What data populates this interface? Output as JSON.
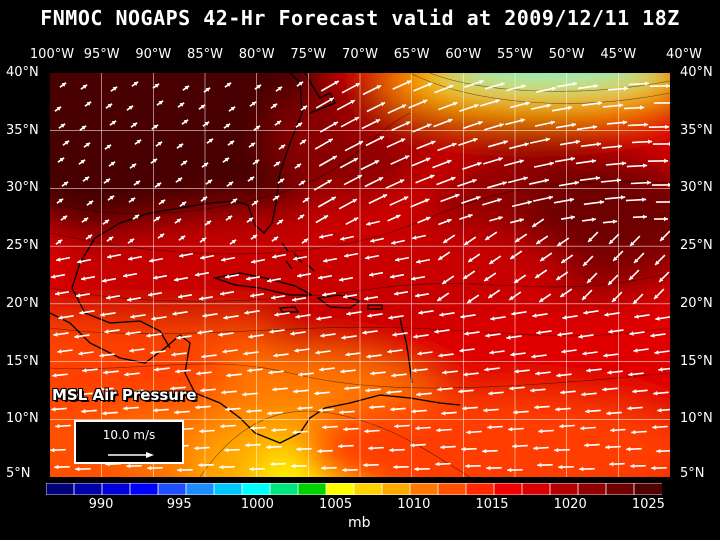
{
  "title": "FNMOC NOGAPS 42-Hr Forecast valid at 2009/12/11 18Z",
  "lon_labels": [
    "100°W",
    "95°W",
    "90°W",
    "85°W",
    "80°W",
    "75°W",
    "70°W",
    "65°W",
    "60°W",
    "55°W",
    "50°W",
    "45°W",
    "40°W"
  ],
  "lat_labels": [
    "40°N",
    "35°N",
    "30°N",
    "25°N",
    "20°N",
    "15°N",
    "10°N",
    "5°N"
  ],
  "field_label": "MSL Air Pressure",
  "vector_legend": {
    "label": "10.0 m/s"
  },
  "colorbar": {
    "labels": [
      "990",
      "995",
      "1000",
      "1005",
      "1010",
      "1015",
      "1020",
      "1025"
    ],
    "unit": "mb",
    "colors": [
      "#00007a",
      "#0000a8",
      "#0000d8",
      "#0000ff",
      "#1e50ff",
      "#1e8cff",
      "#00c8ff",
      "#00ffff",
      "#00e680",
      "#00d200",
      "#ffff00",
      "#ffd200",
      "#ffaa00",
      "#ff7800",
      "#ff5000",
      "#ff2800",
      "#f00000",
      "#d80000",
      "#b40000",
      "#900000",
      "#6e0000",
      "#500000"
    ]
  },
  "colors": {
    "background": "#000000",
    "land_outline": "#000000",
    "grid": "#ffffff"
  }
}
